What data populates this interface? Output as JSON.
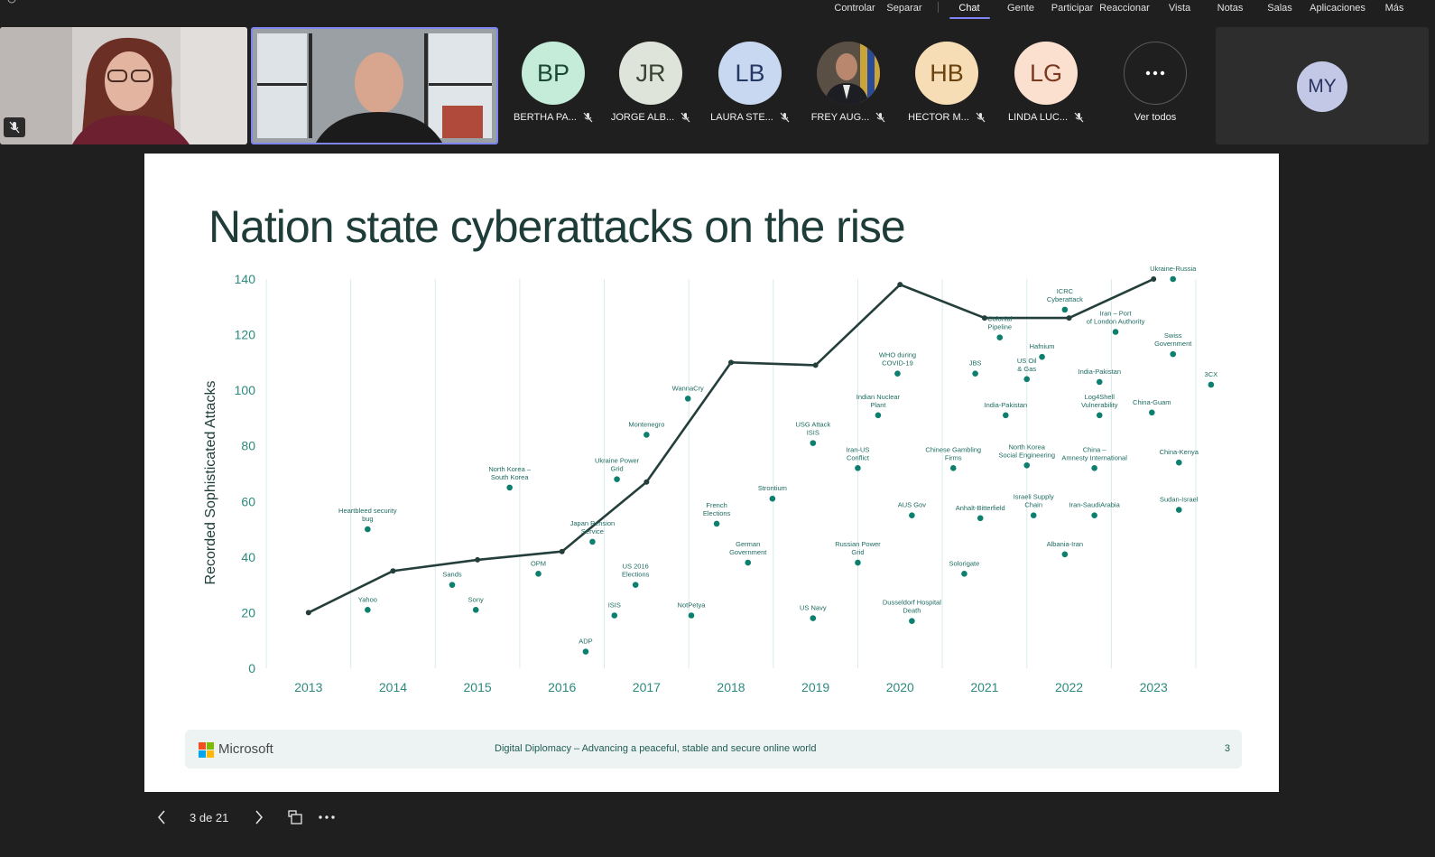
{
  "menu": {
    "items": [
      "Controlar",
      "Separar",
      "Chat",
      "Gente",
      "Participar",
      "Reaccionar",
      "Vista",
      "Notas",
      "Salas",
      "Aplicaciones",
      "Más"
    ],
    "active": "Chat"
  },
  "participants": [
    {
      "initials": "BP",
      "name": "BERTHA PA...",
      "color": "#c5ecd8",
      "text": "#1a4a36"
    },
    {
      "initials": "JR",
      "name": "JORGE ALB...",
      "color": "#dfe4da",
      "text": "#3a4233"
    },
    {
      "initials": "LB",
      "name": "LAURA STE...",
      "color": "#c8d8f0",
      "text": "#243a64"
    },
    {
      "initials": "",
      "name": "FREY AUG...",
      "color": "#3d3a3a",
      "text": "#ffffff",
      "photo": true
    },
    {
      "initials": "HB",
      "name": "HECTOR M...",
      "color": "#f7ddb6",
      "text": "#6a4310"
    },
    {
      "initials": "LG",
      "name": "LINDA LUC...",
      "color": "#fbe0cf",
      "text": "#7a3a20"
    }
  ],
  "see_all": {
    "label": "Ver todos"
  },
  "self_tile": {
    "initials": "MY"
  },
  "slide": {
    "title": "Nation state cyberattacks on the rise",
    "footer_brand": "Microsoft",
    "footer_text": "Digital Diplomacy – Advancing a peaceful, stable and secure online world",
    "page_number": "3"
  },
  "chart_data": {
    "type": "line",
    "ylabel": "Recorded Sophisticated Attacks",
    "xlabel": "",
    "ylim": [
      0,
      140
    ],
    "yticks": [
      0,
      20,
      40,
      60,
      80,
      100,
      120,
      140
    ],
    "x": [
      2013,
      2014,
      2015,
      2016,
      2017,
      2018,
      2019,
      2020,
      2021,
      2022,
      2023
    ],
    "series": [
      {
        "values": [
          20,
          35,
          39,
          42,
          67,
          110,
          109,
          138,
          126,
          126,
          140
        ]
      }
    ],
    "events": [
      {
        "label": "Heartbleed security bug",
        "x": 2013.7,
        "y": 50
      },
      {
        "label": "Yahoo",
        "x": 2013.7,
        "y": 21
      },
      {
        "label": "Sands",
        "x": 2014.7,
        "y": 30
      },
      {
        "label": "Sony",
        "x": 2014.98,
        "y": 21
      },
      {
        "label": "North Korea – South Korea",
        "x": 2015.38,
        "y": 65
      },
      {
        "label": "OPM",
        "x": 2015.72,
        "y": 34
      },
      {
        "label": "ADP",
        "x": 2016.28,
        "y": 6
      },
      {
        "label": "Japan Pension Service",
        "x": 2016.36,
        "y": 45.5
      },
      {
        "label": "ISIS",
        "x": 2016.62,
        "y": 19
      },
      {
        "label": "Ukraine Power Grid",
        "x": 2016.65,
        "y": 68
      },
      {
        "label": "US 2016 Elections",
        "x": 2016.87,
        "y": 30
      },
      {
        "label": "Montenegro",
        "x": 2017.0,
        "y": 84
      },
      {
        "label": "WannaCry",
        "x": 2017.49,
        "y": 97
      },
      {
        "label": "NotPetya",
        "x": 2017.53,
        "y": 19
      },
      {
        "label": "French Elections",
        "x": 2017.83,
        "y": 52
      },
      {
        "label": "German Government",
        "x": 2018.2,
        "y": 38
      },
      {
        "label": "Strontium",
        "x": 2018.49,
        "y": 61
      },
      {
        "label": "USG Attack ISIS",
        "x": 2018.97,
        "y": 81
      },
      {
        "label": "US Navy",
        "x": 2018.97,
        "y": 18
      },
      {
        "label": "Iran-US Conflict",
        "x": 2019.5,
        "y": 72
      },
      {
        "label": "Russian Power Grid",
        "x": 2019.5,
        "y": 38
      },
      {
        "label": "Indian Nuclear Plant",
        "x": 2019.74,
        "y": 91
      },
      {
        "label": "WHO during COVID-19",
        "x": 2019.97,
        "y": 106
      },
      {
        "label": "AUS Gov",
        "x": 2020.14,
        "y": 55
      },
      {
        "label": "Dusseldorf Hospital Death",
        "x": 2020.14,
        "y": 17
      },
      {
        "label": "Chinese Gambling Firms",
        "x": 2020.63,
        "y": 72
      },
      {
        "label": "Solorigate",
        "x": 2020.76,
        "y": 34
      },
      {
        "label": "Anhalt-Bitterfield",
        "x": 2020.95,
        "y": 54
      },
      {
        "label": "JBS",
        "x": 2020.89,
        "y": 106
      },
      {
        "label": "Colonial Pipeline",
        "x": 2021.18,
        "y": 119
      },
      {
        "label": "India-Pakistan",
        "x": 2021.25,
        "y": 91
      },
      {
        "label": "North Korea Social Engineering",
        "x": 2021.5,
        "y": 73
      },
      {
        "label": "US Oil & Gas",
        "x": 2021.5,
        "y": 104
      },
      {
        "label": "Israeli Supply Chain",
        "x": 2021.58,
        "y": 55
      },
      {
        "label": "Hafnium",
        "x": 2021.68,
        "y": 112
      },
      {
        "label": "ICRC Cyberattack",
        "x": 2021.95,
        "y": 129
      },
      {
        "label": "Albania-Iran",
        "x": 2021.95,
        "y": 41
      },
      {
        "label": "China – Amnesty International",
        "x": 2022.3,
        "y": 72
      },
      {
        "label": "Iran-SaudiArabia",
        "x": 2022.3,
        "y": 55
      },
      {
        "label": "India-Pakistan",
        "x": 2022.36,
        "y": 103
      },
      {
        "label": "Log4Shell Vulnerability",
        "x": 2022.36,
        "y": 91
      },
      {
        "label": "Iran – Port of London Authority",
        "x": 2022.55,
        "y": 121
      },
      {
        "label": "China-Guam",
        "x": 2022.98,
        "y": 92
      },
      {
        "label": "Ukraine-Russia",
        "x": 2023.23,
        "y": 140
      },
      {
        "label": "Swiss Government",
        "x": 2023.23,
        "y": 113
      },
      {
        "label": "China-Kenya",
        "x": 2023.3,
        "y": 74
      },
      {
        "label": "Sudan-Israel",
        "x": 2023.3,
        "y": 57
      },
      {
        "label": "3CX",
        "x": 2023.68,
        "y": 102
      }
    ]
  },
  "slide_nav": {
    "counter": "3 de 21"
  }
}
